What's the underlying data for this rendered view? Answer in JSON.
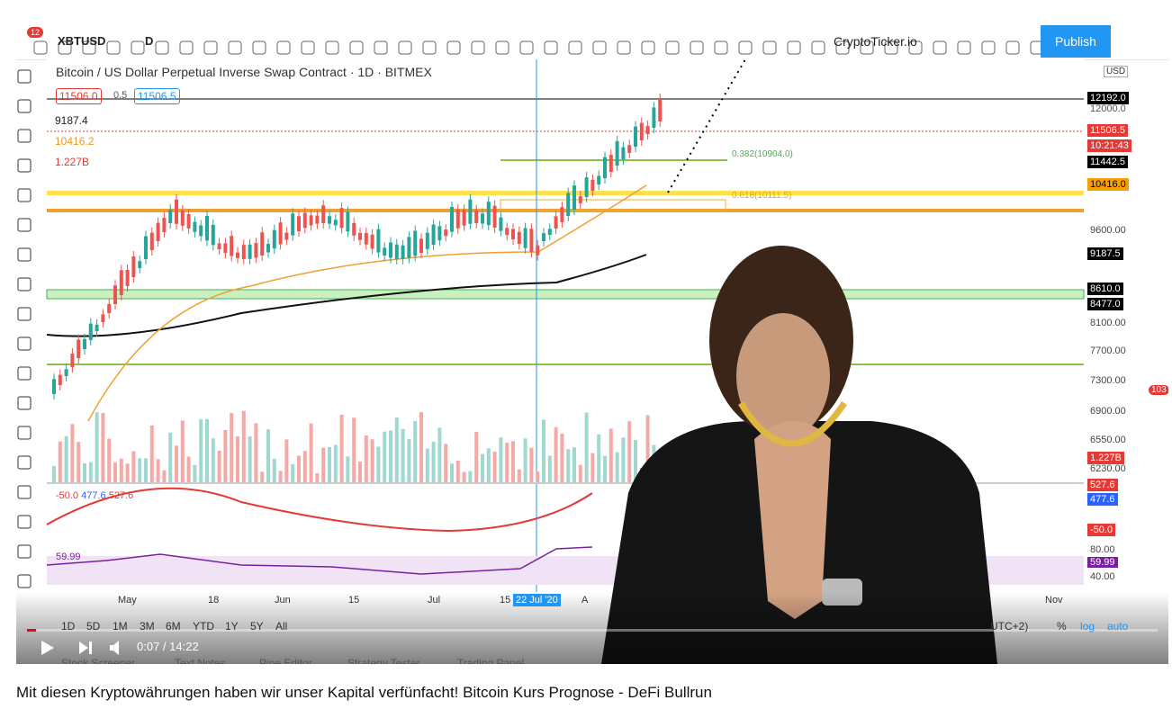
{
  "toolbar": {
    "notification_count": "12",
    "symbol": "XBTUSD",
    "interval": "D",
    "layout_name": "CryptoTicker.io",
    "publish": "Publish"
  },
  "chart": {
    "title": "Bitcoin / US Dollar Perpetual Inverse Swap Contract · 1D · BITMEX",
    "sell": "11506.0",
    "spread": "0.5",
    "buy": "11506.5",
    "legend": [
      "9187.4",
      "10416.2",
      "1.227B"
    ],
    "fib_labels": [
      "0.382(10904.0)",
      "0.618(10111.5)"
    ],
    "currency": "USD",
    "price_axis": [
      "12000.0",
      "12192.0",
      "11506.5",
      "10:21:43",
      "11442.5",
      "10416.0",
      "9600.00",
      "9187.5",
      "8610.0",
      "8477.0",
      "8100.00",
      "7700.00",
      "7300.00",
      "6900.00",
      "6550.00",
      "1.227B",
      "6230.00"
    ],
    "macd_legend": [
      "-50.0",
      "477.6",
      "527.6"
    ],
    "macd_axis": [
      "527.6",
      "477.6",
      "-50.0"
    ],
    "rsi_legend": "59.99",
    "rsi_axis": [
      "80.00",
      "59.99",
      "40.00"
    ],
    "time_axis": [
      "May",
      "18",
      "Jun",
      "15",
      "Jul",
      "15",
      "22 Jul '20",
      "A",
      "Nov"
    ]
  },
  "range_bar": {
    "ranges": [
      "1D",
      "5D",
      "1M",
      "3M",
      "6M",
      "YTD",
      "1Y",
      "5Y",
      "All"
    ],
    "timezone": "UTC+2)",
    "percent": "%",
    "log": "log",
    "auto": "auto"
  },
  "bottom_tabs": [
    "Stock Screener",
    "Text Notes",
    "Pine Editor",
    "Strategy Tester",
    "Trading Panel"
  ],
  "right_badge": "103",
  "player": {
    "time": "0:07 / 14:22"
  },
  "video": {
    "title": "Mit diesen Kryptowährungen haben wir unser Kapital verfünfacht! Bitcoin Kurs Prognose - DeFi Bullrun"
  }
}
